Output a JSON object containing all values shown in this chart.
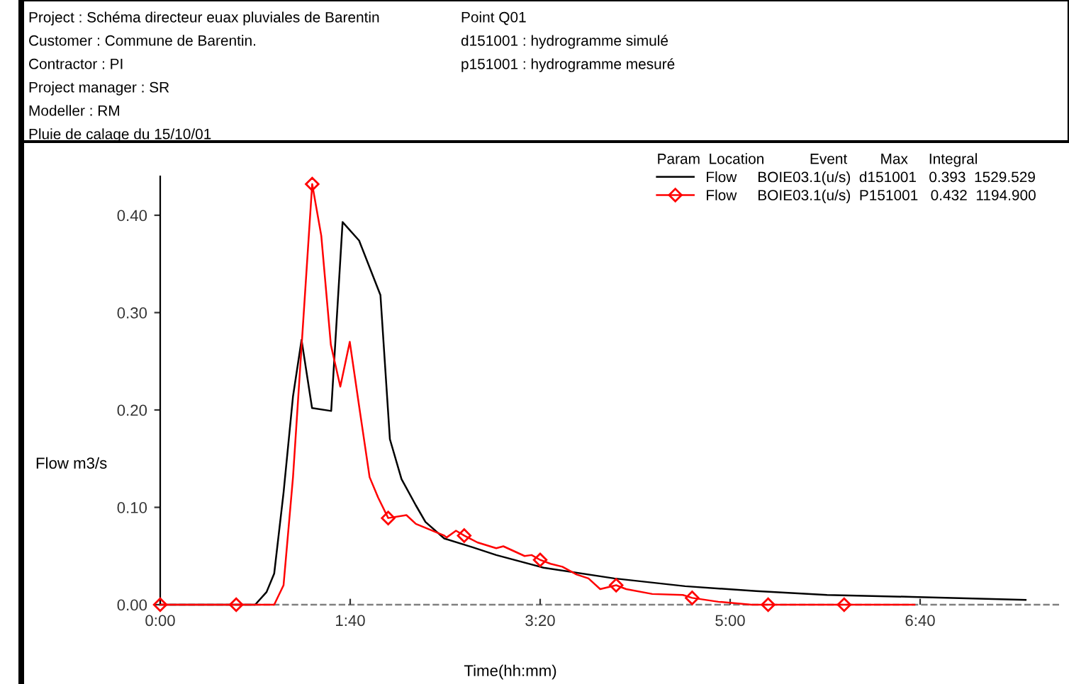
{
  "chart_data": {
    "type": "line",
    "annotations": [
      "Project : Schéma directeur euax pluviales de Barentin",
      "Customer : Commune de Barentin.",
      "Contractor : PI",
      "Project manager : SR",
      "Modeller : RM",
      "Pluie de calage du 15/10/01",
      "Point Q01",
      "d151001 : hydrogramme simulé",
      "p151001 : hydrogramme mesuré"
    ],
    "legend_title": "Param  Location           Event        Max     Integral",
    "xlabel": "Time(hh:mm)",
    "ylabel": "Flow m3/s",
    "xlim": [
      0,
      7.9
    ],
    "ylim": [
      0,
      0.44
    ],
    "xticks": [
      {
        "value": 0,
        "label": "0:00"
      },
      {
        "value": 1.6667,
        "label": "1:40"
      },
      {
        "value": 3.3333,
        "label": "3:20"
      },
      {
        "value": 5,
        "label": "5:00"
      },
      {
        "value": 6.6667,
        "label": "6:40"
      }
    ],
    "yticks": [
      {
        "value": 0,
        "label": "0.00"
      },
      {
        "value": 0.1,
        "label": "0.10"
      },
      {
        "value": 0.2,
        "label": "0.20"
      },
      {
        "value": 0.3,
        "label": "0.30"
      },
      {
        "value": 0.4,
        "label": "0.40"
      }
    ],
    "grid": false,
    "legend": "top right",
    "ref_lines": [
      {
        "axis": "y",
        "value": 0,
        "color": "#808080",
        "line_style": "dashed"
      }
    ],
    "series": [
      {
        "name": "Flow     BOIE03.1(u/s)  d151001   0.393  1529.529",
        "color": "#000000",
        "marker": "none",
        "line_style": "solid",
        "x": [
          0,
          0.833,
          0.933,
          1.0,
          1.082,
          1.165,
          1.24,
          1.332,
          1.5,
          1.6,
          1.745,
          1.932,
          2.015,
          2.117,
          2.243,
          2.327,
          2.492,
          2.74,
          2.948,
          3.362,
          3.983,
          4.605,
          5.228,
          5.85,
          6.597,
          7.592
        ],
        "values": [
          0,
          0,
          0.013,
          0.032,
          0.115,
          0.214,
          0.272,
          0.202,
          0.199,
          0.393,
          0.374,
          0.318,
          0.17,
          0.129,
          0.102,
          0.085,
          0.068,
          0.059,
          0.051,
          0.038,
          0.027,
          0.019,
          0.014,
          0.01,
          0.008,
          0.005
        ]
      },
      {
        "name": "Flow     BOIE03.1(u/s)  P151001   0.432  1194.900",
        "color": "#ff0000",
        "line_style": "solid",
        "x": [
          0,
          0.6667,
          1.0,
          1.082,
          1.165,
          1.3333,
          1.413,
          1.497,
          1.58,
          1.663,
          1.745,
          1.837,
          1.912,
          2.0,
          2.16,
          2.243,
          2.492,
          2.512,
          2.595,
          2.6667,
          2.782,
          2.948,
          3.01,
          3.197,
          3.258,
          3.3333,
          3.425,
          3.528,
          3.653,
          3.757,
          3.86,
          4.0,
          4.088,
          4.317,
          4.585,
          4.6667,
          4.897,
          5.187,
          5.3333,
          6.0,
          6.617
        ],
        "values": [
          0,
          0,
          0,
          0.02,
          0.131,
          0.432,
          0.379,
          0.267,
          0.224,
          0.27,
          0.204,
          0.131,
          0.11,
          0.089,
          0.092,
          0.083,
          0.071,
          0.069,
          0.076,
          0.071,
          0.064,
          0.058,
          0.06,
          0.05,
          0.051,
          0.046,
          0.042,
          0.039,
          0.031,
          0.027,
          0.016,
          0.02,
          0.016,
          0.011,
          0.01,
          0.007,
          0.003,
          0,
          0,
          0,
          0
        ]
      },
      {
        "type": "scatter",
        "color": "#ff0000",
        "marker": "diamond",
        "x": [
          0,
          0.6667,
          1.3333,
          2.0,
          2.6667,
          3.3333,
          4.0,
          4.6667,
          5.3333,
          6.0
        ],
        "values": [
          0,
          0,
          0.432,
          0.089,
          0.071,
          0.046,
          0.02,
          0.007,
          0,
          0
        ]
      }
    ]
  }
}
